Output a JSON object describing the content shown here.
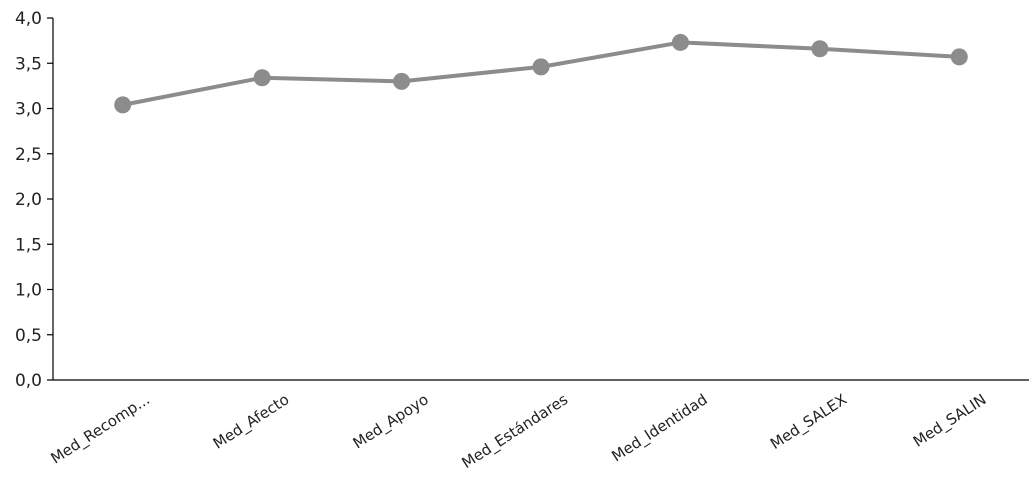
{
  "chart_data": {
    "type": "line",
    "title": "",
    "xlabel": "",
    "ylabel": "",
    "categories": [
      "Med_Recomp...",
      "Med_Afecto",
      "Med_Apoyo",
      "Med_Estándares",
      "Med_Identidad",
      "Med_SALEX",
      "Med_SALIN"
    ],
    "series": [
      {
        "values": [
          3.04,
          3.34,
          3.3,
          3.46,
          3.73,
          3.66,
          3.57
        ]
      }
    ],
    "ylim": [
      0,
      4
    ],
    "yticks": [
      "0,0",
      "0,5",
      "1,0",
      "1,5",
      "2,0",
      "2,5",
      "3,0",
      "3,5",
      "4,0"
    ],
    "grid": false,
    "legend": "none",
    "colors": {
      "line": "#8c8c8c",
      "marker": "#8c8c8c",
      "axis": "#000000"
    }
  }
}
